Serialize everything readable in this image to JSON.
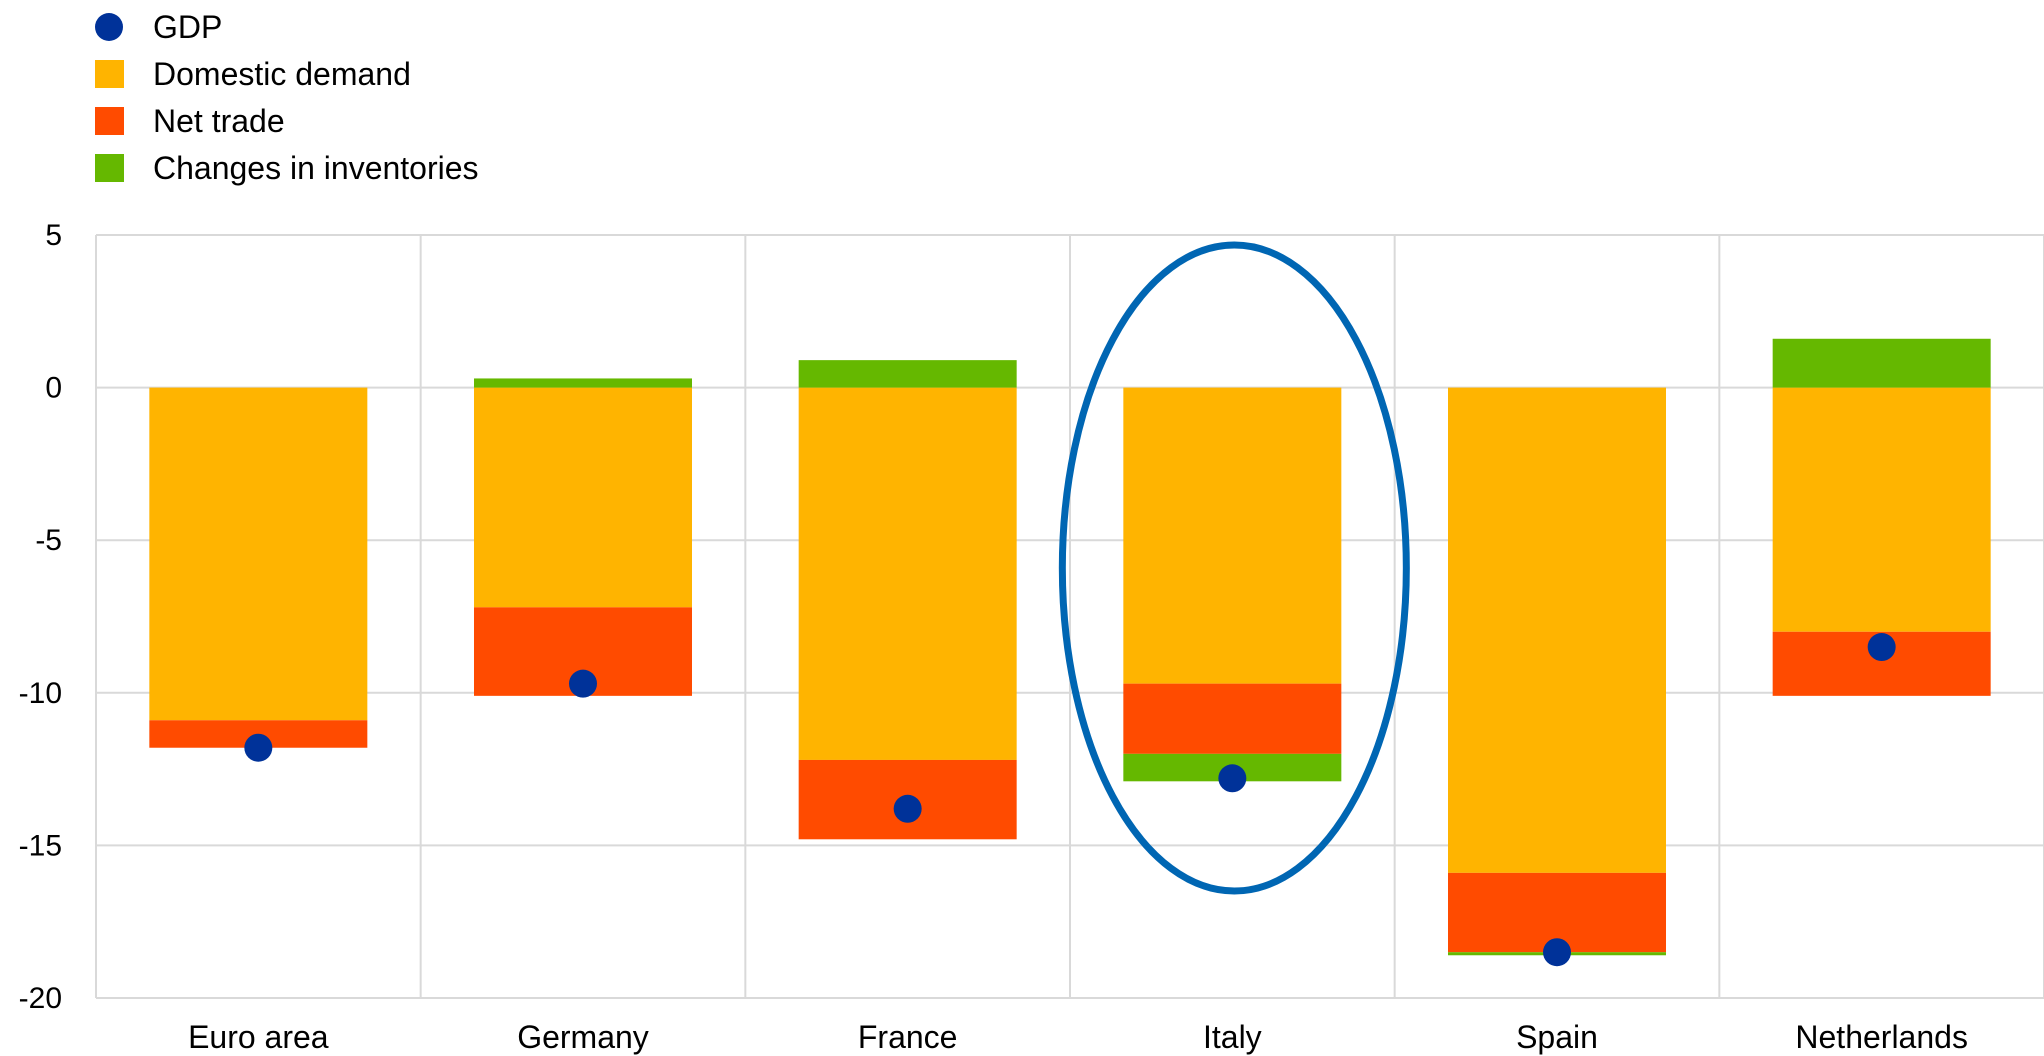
{
  "chart_data": {
    "type": "bar",
    "stacked": true,
    "categories": [
      "Euro area",
      "Germany",
      "France",
      "Italy",
      "Spain",
      "Netherlands"
    ],
    "series": [
      {
        "name": "Domestic demand",
        "kind": "bar",
        "color": "#FFB400",
        "values": [
          -10.9,
          -7.2,
          -12.2,
          -9.7,
          -15.9,
          -8.0
        ]
      },
      {
        "name": "Net trade",
        "kind": "bar",
        "color": "#FF4B00",
        "values": [
          -0.9,
          -2.9,
          -2.6,
          -2.3,
          -2.6,
          -2.1
        ]
      },
      {
        "name": "Changes in inventories",
        "kind": "bar",
        "color": "#65B800",
        "values": [
          0.0,
          0.3,
          0.9,
          -0.9,
          -0.1,
          1.6
        ]
      },
      {
        "name": "GDP",
        "kind": "point",
        "color": "#003299",
        "values": [
          -11.8,
          -9.7,
          -13.8,
          -12.8,
          -18.5,
          -8.5
        ]
      }
    ],
    "legend_order": [
      "GDP",
      "Domestic demand",
      "Net trade",
      "Changes in inventories"
    ],
    "legend_position": "top-left",
    "ylim": [
      -20,
      5
    ],
    "yticks": [
      5,
      0,
      -5,
      -10,
      -15,
      -20
    ],
    "ytick_labels": [
      "5",
      "0",
      "-5",
      "-10",
      "-15",
      "-20"
    ],
    "grid": true,
    "highlight": {
      "category": "Italy",
      "shape": "ellipse",
      "color": "#0066B3"
    },
    "title": "",
    "xlabel": "",
    "ylabel": ""
  }
}
